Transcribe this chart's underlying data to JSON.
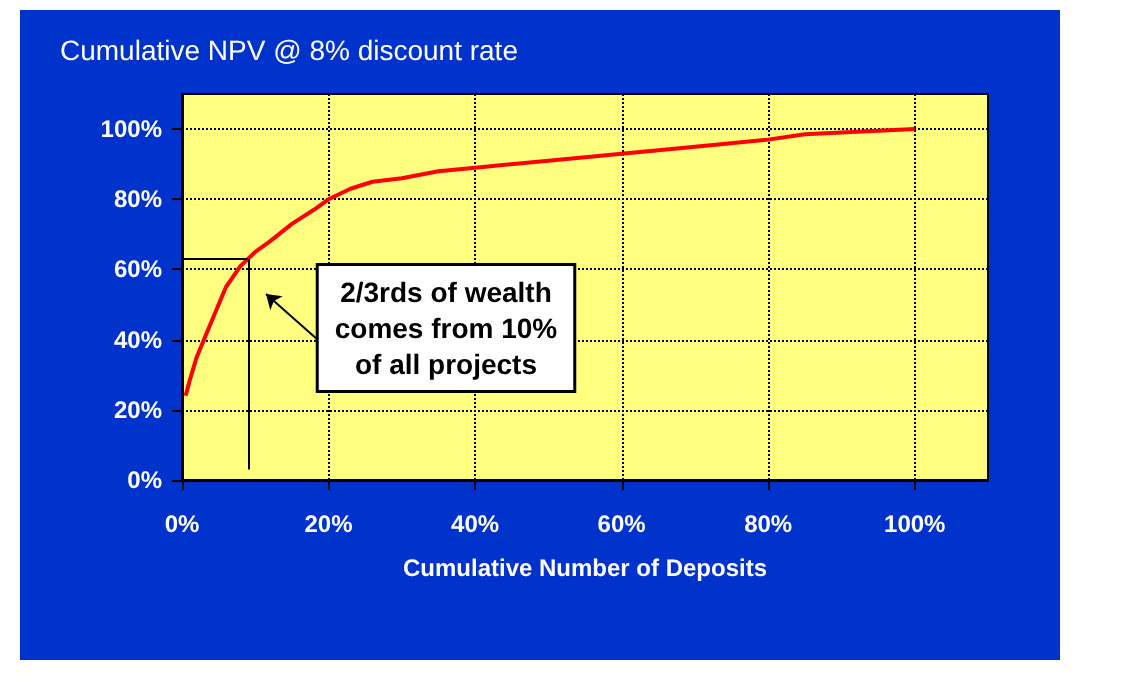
{
  "chart_data": {
    "type": "line",
    "title": "Cumulative NPV @ 8% discount rate",
    "xlabel": "Cumulative Number of Deposits",
    "x": [
      0.5,
      1,
      2,
      3,
      4,
      5,
      6,
      7,
      8,
      9,
      10,
      12,
      15,
      18,
      20,
      23,
      26,
      30,
      35,
      40,
      50,
      60,
      70,
      80,
      85,
      90,
      100
    ],
    "series": [
      {
        "color": "#ff0000",
        "values": [
          24,
          28,
          35,
          40,
          45,
          50,
          55,
          58,
          61,
          63,
          65,
          68,
          73,
          77,
          80,
          83,
          85,
          86,
          88,
          89,
          91,
          93,
          95,
          97,
          98.5,
          99,
          100
        ]
      }
    ],
    "xlim": [
      0,
      110
    ],
    "xticks": [
      {
        "value": 0,
        "label": "0%"
      },
      {
        "value": 20,
        "label": "20%"
      },
      {
        "value": 40,
        "label": "40%"
      },
      {
        "value": 60,
        "label": "60%"
      },
      {
        "value": 80,
        "label": "80%"
      },
      {
        "value": 100,
        "label": "100%"
      }
    ],
    "ylim": [
      0,
      110
    ],
    "yticks": [
      {
        "value": 0,
        "label": "0%"
      },
      {
        "value": 20,
        "label": "20%"
      },
      {
        "value": 40,
        "label": "40%"
      },
      {
        "value": 60,
        "label": "60%"
      },
      {
        "value": 80,
        "label": "80%"
      },
      {
        "value": 100,
        "label": "100%"
      }
    ],
    "ref_lines": [
      {
        "axis": "x",
        "value": 9,
        "color": "#000000",
        "line_style": "solid"
      },
      {
        "axis": "y",
        "value": 63,
        "color": "#000000",
        "line_style": "solid"
      }
    ],
    "annotations": [
      "2/3rds of wealth\ncomes from 10%\nof all projects"
    ],
    "grid": true,
    "marker": "none",
    "line_style": "solid"
  }
}
